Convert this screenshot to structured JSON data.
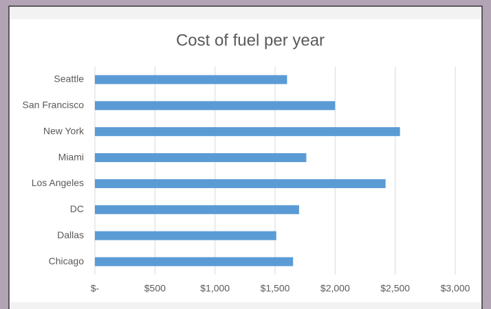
{
  "chart_data": {
    "type": "barh",
    "title": "Cost of fuel per year",
    "categories": [
      "Seattle",
      "San Francisco",
      "New York",
      "Miami",
      "Los Angeles",
      "DC",
      "Dallas",
      "Chicago"
    ],
    "values": [
      1600,
      2000,
      2540,
      1760,
      2420,
      1700,
      1510,
      1650
    ],
    "color": "#5b9bd5",
    "xlim": [
      0,
      3000
    ],
    "xticks": [
      {
        "value": 0,
        "label": "$-"
      },
      {
        "value": 500,
        "label": "$500"
      },
      {
        "value": 1000,
        "label": "$1,000"
      },
      {
        "value": 1500,
        "label": "$1,500"
      },
      {
        "value": 2000,
        "label": "$2,000"
      },
      {
        "value": 2500,
        "label": "$2,500"
      },
      {
        "value": 3000,
        "label": "$3,000"
      }
    ],
    "grid": true
  }
}
